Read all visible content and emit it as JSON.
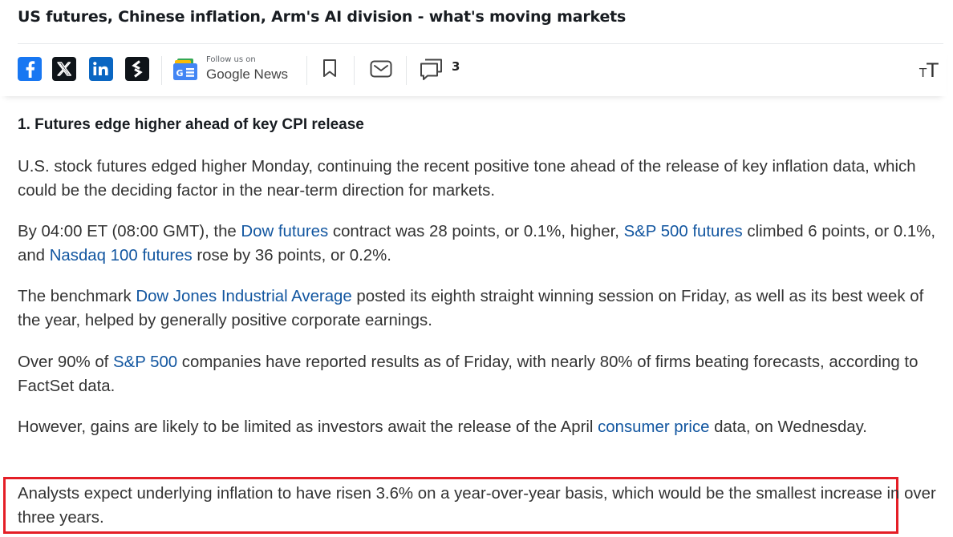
{
  "article": {
    "headline": "US futures, Chinese inflation, Arm's AI division - what's moving markets"
  },
  "toolbar": {
    "social": [
      {
        "icon": "facebook-icon",
        "color": "#1877f2"
      },
      {
        "icon": "x-icon",
        "color": "#0f1419"
      },
      {
        "icon": "linkedin-icon",
        "color": "#0a66c2"
      },
      {
        "icon": "stocktwits-icon",
        "color": "#0f1419"
      }
    ],
    "google_news": {
      "follow_label": "Follow us on",
      "name": "Google News"
    },
    "bookmark_icon": "bookmark-icon",
    "email_icon": "email-icon",
    "comments_icon": "comments-icon",
    "comment_count": "3",
    "text_size_icon": "text-size-icon",
    "text_size_small": "T",
    "text_size_large": "T"
  },
  "section": {
    "title": "1. Futures edge higher ahead of key CPI release",
    "p1": "U.S. stock futures edged higher Monday, continuing the recent positive tone ahead of the release of key inflation data, which could be the deciding factor in the near-term direction for markets.",
    "p2": {
      "t1": "By 04:00 ET (08:00 GMT), the ",
      "link1": "Dow futures",
      "t2": " contract was 28 points, or 0.1%, higher, ",
      "link2": "S&P 500 futures",
      "t3": " climbed 6 points, or 0.1%, and ",
      "link3": "Nasdaq 100 futures",
      "t4": " rose by 36 points, or 0.2%."
    },
    "p3": {
      "t1": "The benchmark ",
      "link1": "Dow Jones Industrial Average",
      "t2": " posted its eighth straight winning session on Friday, as well as its best week of the year, helped by generally positive corporate earnings."
    },
    "p4": {
      "t1": "Over 90% of ",
      "link1": "S&P 500",
      "t2": " companies have reported results as of Friday, with nearly 80% of firms beating forecasts, according to FactSet data."
    },
    "p5": {
      "t1": "However, gains are likely to be limited as investors await the release of the April ",
      "link1": "consumer price",
      "t2": " data, on Wednesday."
    },
    "p6": "Analysts expect underlying inflation to have risen 3.6% on a year-over-year basis, which would be the smallest increase in over three years."
  },
  "colors": {
    "link": "#1256a0",
    "highlight_border": "#e41e26"
  }
}
